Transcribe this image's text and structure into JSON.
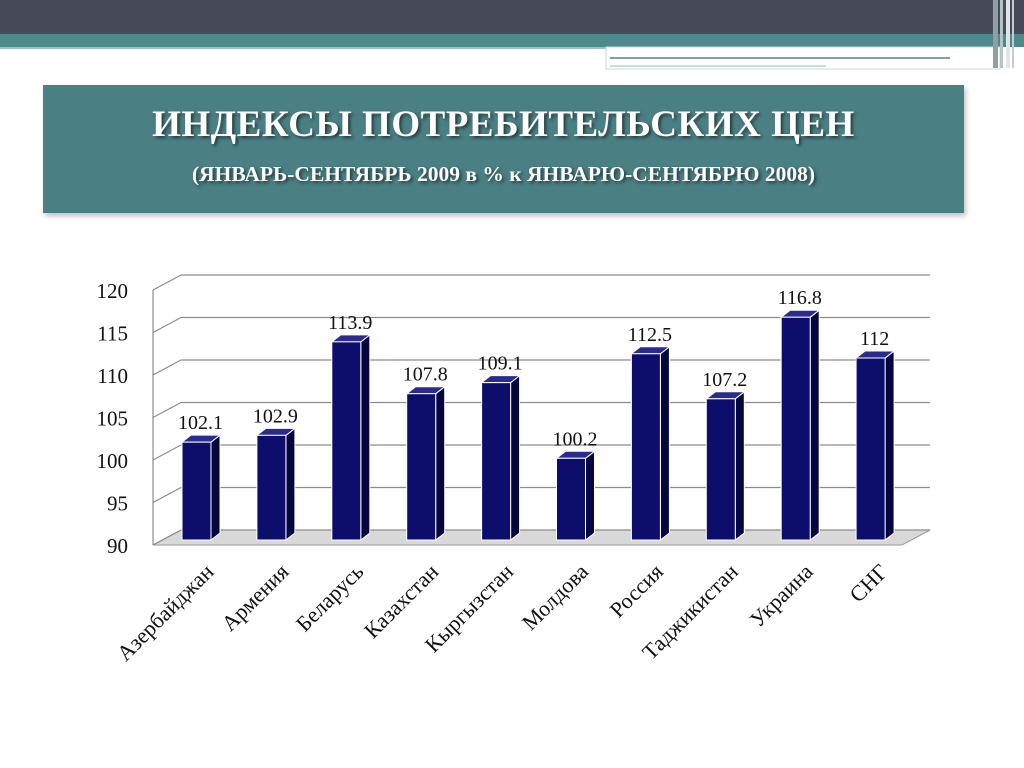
{
  "slide": {
    "title": "ИНДЕКСЫ ПОТРЕБИТЕЛЬСКИХ ЦЕН",
    "subtitle": "(ЯНВАРЬ-СЕНТЯБРЬ 2009 в % к ЯНВАРЮ-СЕНТЯБРЮ 2008)"
  },
  "chart_data": {
    "type": "bar",
    "categories": [
      "Азербайджан",
      "Армения",
      "Беларусь",
      "Казахстан",
      "Кыргызстан",
      "Молдова",
      "Россия",
      "Таджикистан",
      "Украина",
      "СНГ"
    ],
    "values": [
      102.1,
      102.9,
      113.9,
      107.8,
      109.1,
      100.2,
      112.5,
      107.2,
      116.8,
      112
    ],
    "value_labels": [
      "102.1",
      "102.9",
      "113.9",
      "107.8",
      "109.1",
      "100.2",
      "112.5",
      "107.2",
      "116.8",
      "112"
    ],
    "ylim": [
      90,
      120
    ],
    "yticks": [
      90,
      95,
      100,
      105,
      110,
      115,
      120
    ],
    "grid": true,
    "legend": "none",
    "bar_color": "#0d0d6b",
    "bar_side_color": "#06063f",
    "bar_top_color": "#2a2a8f"
  },
  "colors": {
    "top_bar": "#474a58",
    "teal_stripe": "#4e8a8c",
    "title_box": "#4a7f84"
  }
}
